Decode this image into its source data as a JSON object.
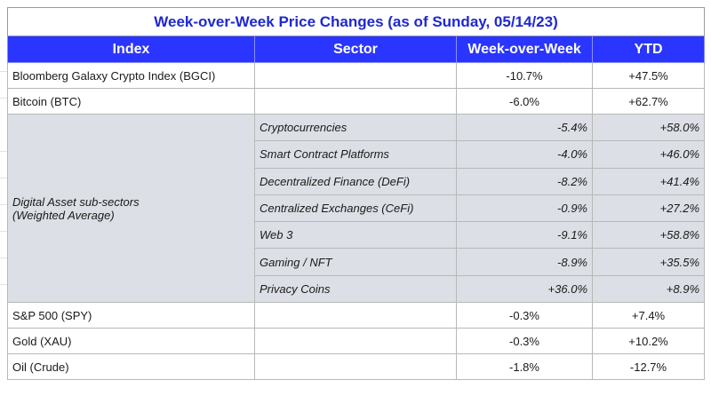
{
  "title": "Week-over-Week Price Changes (as of Sunday, 05/14/23)",
  "headers": [
    "Index",
    "Sector",
    "Week-over-Week",
    "YTD"
  ],
  "top_rows": [
    {
      "index": "Bloomberg Galaxy Crypto Index (BGCI)",
      "wow": "-10.7%",
      "ytd": "+47.5%"
    },
    {
      "index": "Bitcoin (BTC)",
      "wow": "-6.0%",
      "ytd": "+62.7%"
    }
  ],
  "group": {
    "label_line1": "Digital Asset sub-sectors",
    "label_line2": "(Weighted Average)",
    "rows": [
      {
        "sector": "Cryptocurrencies",
        "wow": "-5.4%",
        "ytd": "+58.0%"
      },
      {
        "sector": "Smart Contract Platforms",
        "wow": "-4.0%",
        "ytd": "+46.0%"
      },
      {
        "sector": "Decentralized Finance (DeFi)",
        "wow": "-8.2%",
        "ytd": "+41.4%"
      },
      {
        "sector": "Centralized Exchanges (CeFi)",
        "wow": "-0.9%",
        "ytd": "+27.2%"
      },
      {
        "sector": "Web 3",
        "wow": "-9.1%",
        "ytd": "+58.8%"
      },
      {
        "sector": "Gaming / NFT",
        "wow": "-8.9%",
        "ytd": "+35.5%"
      },
      {
        "sector": "Privacy Coins",
        "wow": "+36.0%",
        "ytd": "+8.9%"
      }
    ]
  },
  "bottom_rows": [
    {
      "index": "S&P 500 (SPY)",
      "wow": "-0.3%",
      "ytd": "+7.4%"
    },
    {
      "index": "Gold (XAU)",
      "wow": "-0.3%",
      "ytd": "+10.2%"
    },
    {
      "index": "Oil (Crude)",
      "wow": "-1.8%",
      "ytd": "-12.7%"
    }
  ],
  "colors": {
    "title": "#1e28d2",
    "header_bg": "#2a35ff",
    "subsector_bg": "#dcdfe5"
  }
}
